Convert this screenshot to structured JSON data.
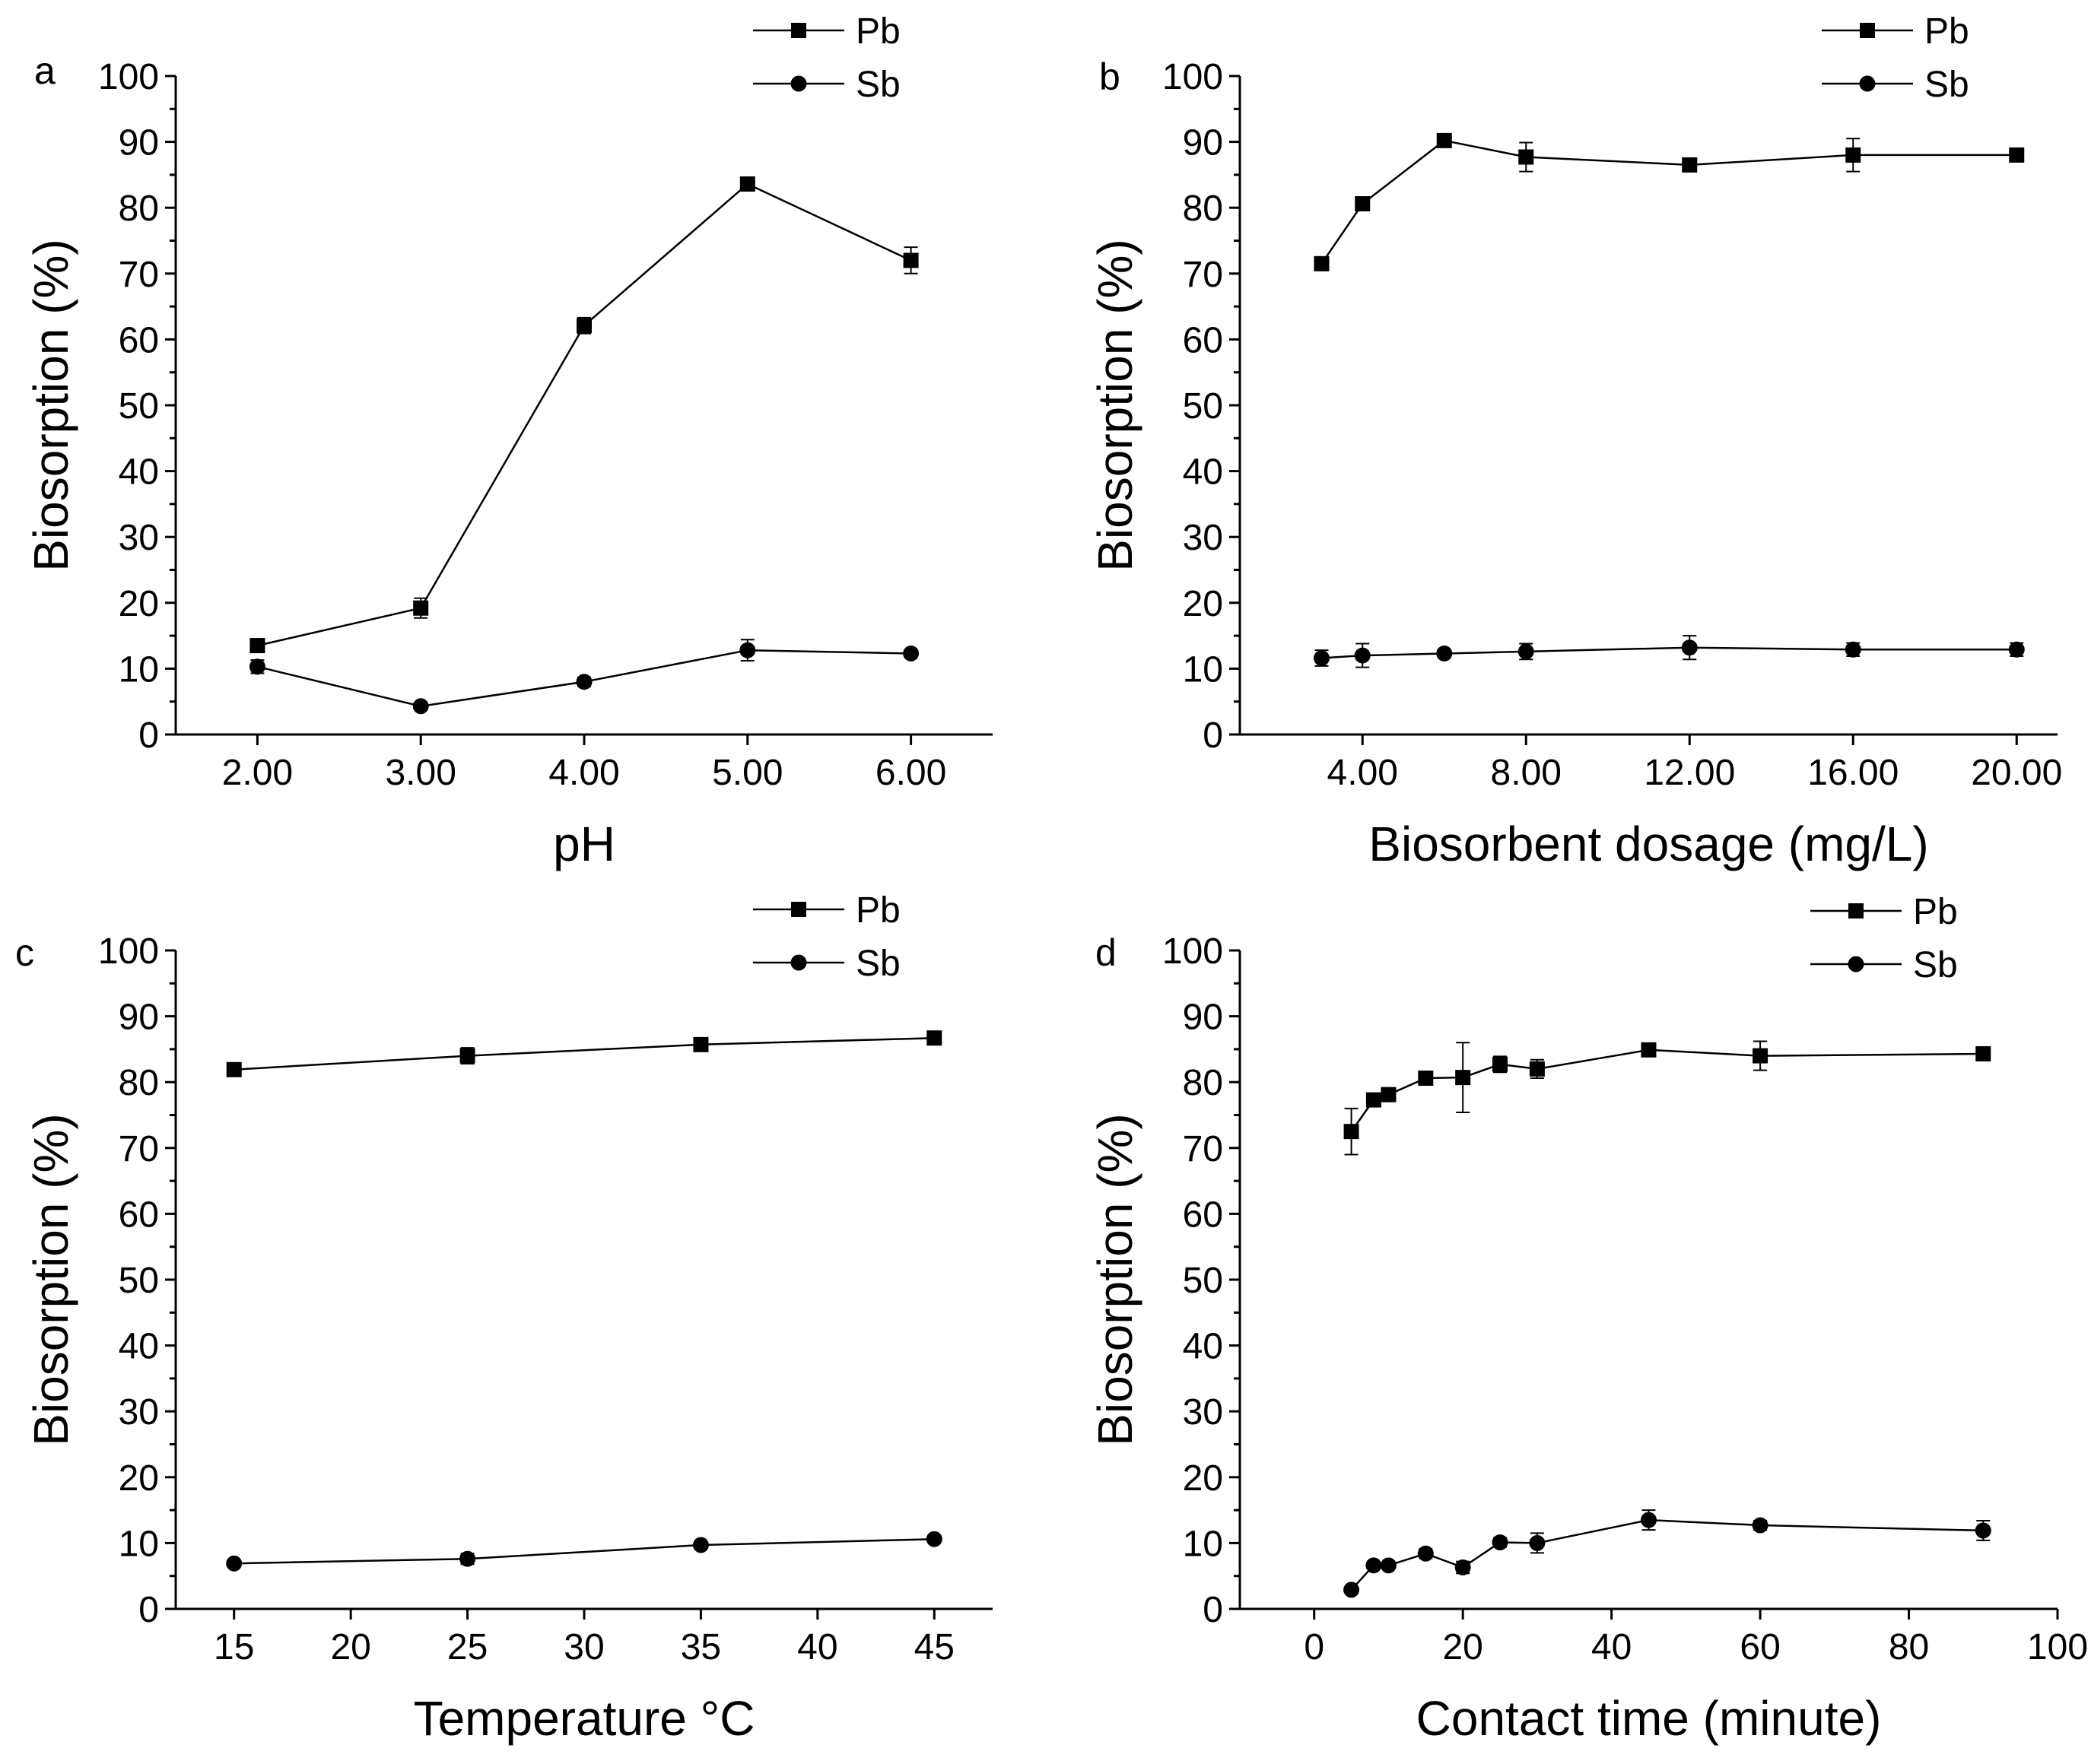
{
  "chart_data": [
    {
      "type": "line",
      "panel_label": "a",
      "xlabel": "pH",
      "ylabel": "Biosorption (%)",
      "x_categories": [
        "2.00",
        "3.00",
        "4.00",
        "5.00",
        "6.00"
      ],
      "xlim": [
        1.5,
        6.5
      ],
      "ylim": [
        0,
        100
      ],
      "yticks": [
        "0",
        "10",
        "20",
        "30",
        "40",
        "50",
        "60",
        "70",
        "80",
        "90",
        "100"
      ],
      "legend": {
        "position": "top-right",
        "entries": [
          "Pb",
          "Sb"
        ]
      },
      "series": [
        {
          "name": "Pb",
          "marker": "square",
          "x": [
            2,
            3,
            4,
            5,
            6
          ],
          "y": [
            13.5,
            19.2,
            62.1,
            83.6,
            72.0
          ],
          "err": [
            0.8,
            1.5,
            1.2,
            0.6,
            2.0
          ]
        },
        {
          "name": "Sb",
          "marker": "circle",
          "x": [
            2,
            3,
            4,
            5,
            6
          ],
          "y": [
            10.3,
            4.3,
            8.0,
            12.8,
            12.3
          ],
          "err": [
            1.0,
            0.5,
            0.7,
            1.6,
            0.5
          ]
        }
      ]
    },
    {
      "type": "line",
      "panel_label": "b",
      "xlabel": "Biosorbent dosage (mg/L)",
      "ylabel": "Biosorption (%)",
      "x_categories": [
        "4.00",
        "8.00",
        "12.00",
        "16.00",
        "20.00"
      ],
      "xlim": [
        1,
        21
      ],
      "ylim": [
        0,
        100
      ],
      "yticks": [
        "0",
        "10",
        "20",
        "30",
        "40",
        "50",
        "60",
        "70",
        "80",
        "90",
        "100"
      ],
      "legend": {
        "position": "top-right",
        "entries": [
          "Pb",
          "Sb"
        ]
      },
      "series": [
        {
          "name": "Pb",
          "marker": "square",
          "x": [
            3,
            4,
            6,
            8,
            12,
            16,
            20
          ],
          "y": [
            71.5,
            80.6,
            90.2,
            87.7,
            86.5,
            88.0,
            88.0
          ],
          "err": [
            0.8,
            0.8,
            0.6,
            2.2,
            0.5,
            2.5,
            0.5
          ]
        },
        {
          "name": "Sb",
          "marker": "circle",
          "x": [
            3,
            4,
            6,
            8,
            12,
            16,
            20
          ],
          "y": [
            11.6,
            12.0,
            12.3,
            12.6,
            13.2,
            12.9,
            12.9
          ],
          "err": [
            1.2,
            1.8,
            0.6,
            1.2,
            1.8,
            1.0,
            1.0
          ]
        }
      ]
    },
    {
      "type": "line",
      "panel_label": "c",
      "xlabel": "Temperature °C",
      "ylabel": "Biosorption (%)",
      "x_categories": [
        "15",
        "20",
        "25",
        "30",
        "35",
        "40",
        "45"
      ],
      "xlim": [
        12.5,
        47.5
      ],
      "ylim": [
        0,
        100
      ],
      "yticks": [
        "0",
        "10",
        "20",
        "30",
        "40",
        "50",
        "60",
        "70",
        "80",
        "90",
        "100"
      ],
      "legend": {
        "position": "top-right",
        "entries": [
          "Pb",
          "Sb"
        ]
      },
      "series": [
        {
          "name": "Pb",
          "marker": "square",
          "x": [
            15,
            25,
            35,
            45
          ],
          "y": [
            81.9,
            84.0,
            85.7,
            86.7
          ],
          "err": [
            0.4,
            1.2,
            0.5,
            0.4
          ]
        },
        {
          "name": "Sb",
          "marker": "circle",
          "x": [
            15,
            25,
            35,
            45
          ],
          "y": [
            6.9,
            7.6,
            9.7,
            10.6
          ],
          "err": [
            0.3,
            0.8,
            0.4,
            0.5
          ]
        }
      ]
    },
    {
      "type": "line",
      "panel_label": "d",
      "xlabel": "Contact time (minute)",
      "ylabel": "Biosorption (%)",
      "x_categories": [
        "0",
        "20",
        "40",
        "60",
        "80",
        "100"
      ],
      "xlim": [
        -10,
        100
      ],
      "ylim": [
        0,
        100
      ],
      "yticks": [
        "0",
        "10",
        "20",
        "30",
        "40",
        "50",
        "60",
        "70",
        "80",
        "90",
        "100"
      ],
      "legend": {
        "position": "top-right",
        "entries": [
          "Pb",
          "Sb"
        ]
      },
      "series": [
        {
          "name": "Pb",
          "marker": "square",
          "x": [
            5,
            8,
            10,
            15,
            20,
            25,
            30,
            45,
            60,
            90
          ],
          "y": [
            72.5,
            77.3,
            78.1,
            80.6,
            80.7,
            82.7,
            82.0,
            84.9,
            84.0,
            84.3
          ],
          "err": [
            3.5,
            0.6,
            0.5,
            0.4,
            5.3,
            1.2,
            1.4,
            0.5,
            2.2,
            0.5
          ]
        },
        {
          "name": "Sb",
          "marker": "circle",
          "x": [
            5,
            8,
            10,
            15,
            20,
            25,
            30,
            45,
            60,
            90
          ],
          "y": [
            2.9,
            6.6,
            6.6,
            8.4,
            6.3,
            10.1,
            10.0,
            13.5,
            12.7,
            11.9
          ],
          "err": [
            0.4,
            0.5,
            0.5,
            0.7,
            0.9,
            0.7,
            1.5,
            1.5,
            0.7,
            1.5
          ]
        }
      ]
    }
  ]
}
